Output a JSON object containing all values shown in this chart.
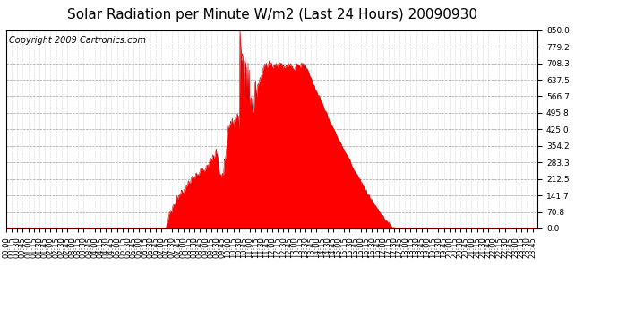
{
  "title": "Solar Radiation per Minute W/m2 (Last 24 Hours) 20090930",
  "copyright_text": "Copyright 2009 Cartronics.com",
  "y_ticks": [
    0.0,
    70.8,
    141.7,
    212.5,
    283.3,
    354.2,
    425.0,
    495.8,
    566.7,
    637.5,
    708.3,
    779.2,
    850.0
  ],
  "y_min": 0.0,
  "y_max": 850.0,
  "fill_color": "#FF0000",
  "line_color": "#CC0000",
  "bg_color": "#FFFFFF",
  "plot_bg_color": "#FFFFFF",
  "grid_color": "#888888",
  "dashed_line_color": "#FF0000",
  "title_fontsize": 11,
  "copyright_fontsize": 7,
  "tick_fontsize": 6.5,
  "num_points": 1440
}
